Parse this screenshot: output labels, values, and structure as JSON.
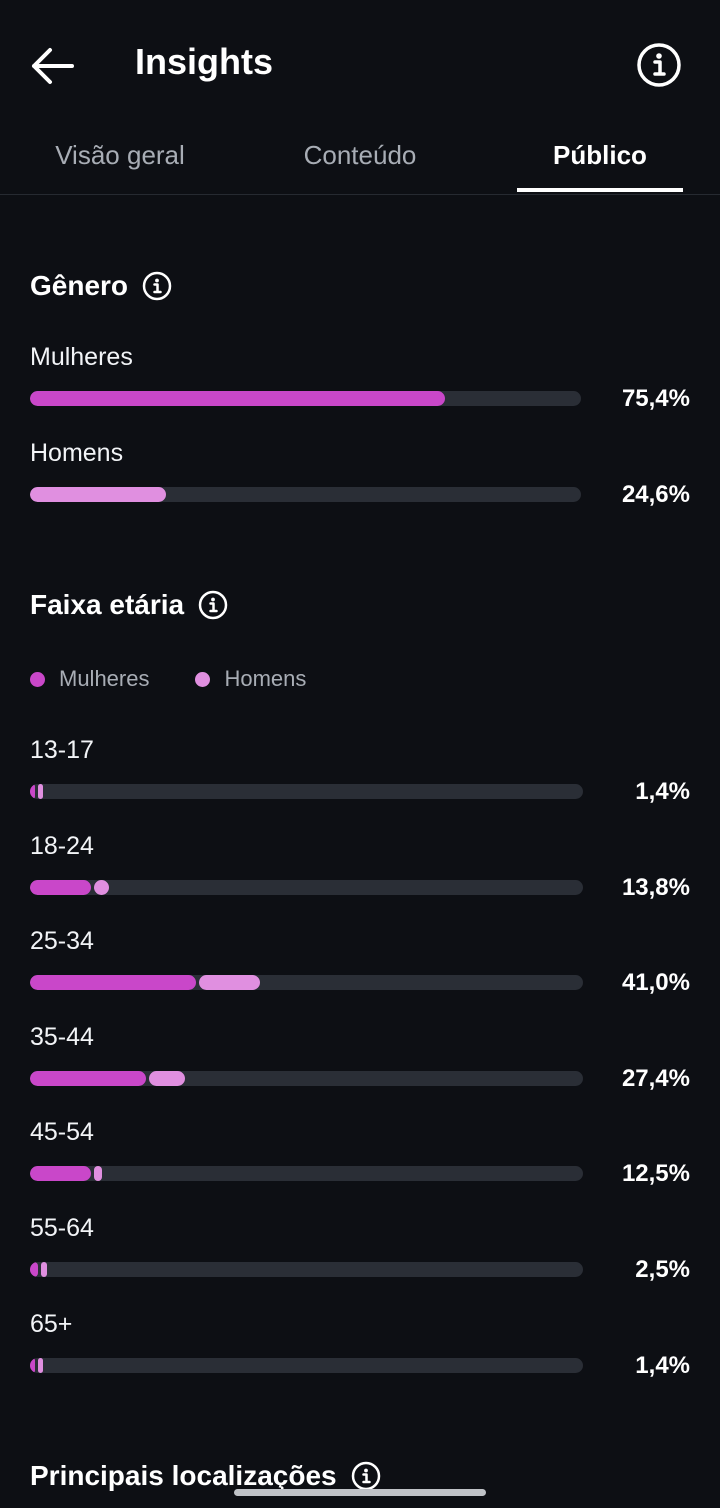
{
  "header": {
    "title": "Insights",
    "back_icon": "arrow-left-icon",
    "info_icon": "info-circle-icon"
  },
  "tabs": [
    {
      "label": "Visão geral",
      "active": false
    },
    {
      "label": "Conteúdo",
      "active": false
    },
    {
      "label": "Público",
      "active": true
    }
  ],
  "colors": {
    "women": "#c947c9",
    "men": "#e08fe0",
    "track": "#2a2e36",
    "background": "#0d0f14"
  },
  "gender": {
    "title": "Gênero",
    "rows": [
      {
        "label": "Mulheres",
        "percent": "75,4%",
        "fraction": 0.754
      },
      {
        "label": "Homens",
        "percent": "24,6%",
        "fraction": 0.246
      }
    ]
  },
  "age": {
    "title": "Faixa etária",
    "legend": [
      "Mulheres",
      "Homens"
    ],
    "rows": [
      {
        "label": "13-17",
        "percent": "1,4%",
        "women": 0.008,
        "men": 0.006
      },
      {
        "label": "18-24",
        "percent": "13,8%",
        "women": 0.11,
        "men": 0.028
      },
      {
        "label": "25-34",
        "percent": "41,0%",
        "women": 0.3,
        "men": 0.11
      },
      {
        "label": "35-44",
        "percent": "27,4%",
        "women": 0.21,
        "men": 0.064
      },
      {
        "label": "45-54",
        "percent": "12,5%",
        "women": 0.11,
        "men": 0.015
      },
      {
        "label": "55-64",
        "percent": "2,5%",
        "women": 0.014,
        "men": 0.011
      },
      {
        "label": "65+",
        "percent": "1,4%",
        "women": 0.008,
        "men": 0.006
      }
    ]
  },
  "locations": {
    "title": "Principais localizações"
  }
}
